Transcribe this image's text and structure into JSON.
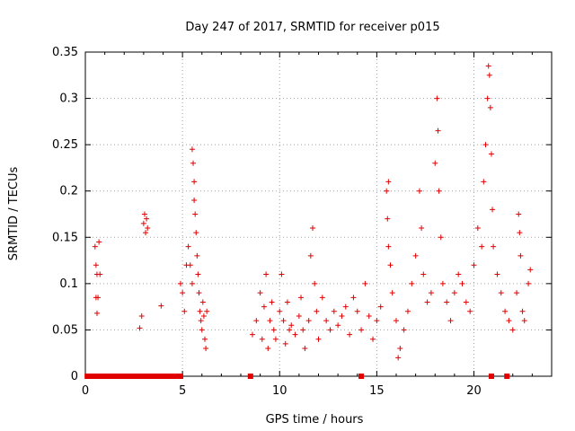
{
  "chart_data": {
    "type": "scatter",
    "title": "Day 247 of 2017, SRMTID for receiver p015",
    "xlabel": "GPS time / hours",
    "ylabel": "SRMTID / TECUs",
    "xlim": [
      0,
      24
    ],
    "ylim": [
      0,
      0.35
    ],
    "xticks": [
      0,
      5,
      10,
      15,
      20
    ],
    "xtick_labels": [
      "0",
      "5",
      "10",
      "15",
      "20"
    ],
    "yticks": [
      0,
      0.05,
      0.1,
      0.15,
      0.2,
      0.25,
      0.3,
      0.35
    ],
    "ytick_labels": [
      "0",
      "0.05",
      "0.1",
      "0.15",
      "0.2",
      "0.25",
      "0.3",
      "0.35"
    ],
    "grid": true,
    "marker": "+",
    "color": "#e00000",
    "series": [
      {
        "name": "SRMTID",
        "points": [
          [
            0.5,
            0.14
          ],
          [
            0.55,
            0.12
          ],
          [
            0.6,
            0.11
          ],
          [
            0.65,
            0.085
          ],
          [
            0.7,
            0.145
          ],
          [
            0.6,
            0.068
          ],
          [
            0.75,
            0.11
          ],
          [
            0.55,
            0.085
          ],
          [
            2.8,
            0.052
          ],
          [
            2.9,
            0.065
          ],
          [
            3.0,
            0.165
          ],
          [
            3.05,
            0.175
          ],
          [
            3.1,
            0.155
          ],
          [
            3.15,
            0.17
          ],
          [
            3.2,
            0.16
          ],
          [
            3.9,
            0.076
          ],
          [
            4.9,
            0.1
          ],
          [
            5.0,
            0.09
          ],
          [
            5.1,
            0.07
          ],
          [
            5.2,
            0.12
          ],
          [
            5.3,
            0.14
          ],
          [
            5.4,
            0.12
          ],
          [
            5.5,
            0.1
          ],
          [
            5.5,
            0.245
          ],
          [
            5.55,
            0.23
          ],
          [
            5.6,
            0.21
          ],
          [
            5.6,
            0.19
          ],
          [
            5.65,
            0.175
          ],
          [
            5.7,
            0.155
          ],
          [
            5.75,
            0.13
          ],
          [
            5.8,
            0.11
          ],
          [
            5.85,
            0.09
          ],
          [
            5.9,
            0.07
          ],
          [
            5.95,
            0.06
          ],
          [
            6.0,
            0.05
          ],
          [
            6.05,
            0.08
          ],
          [
            6.1,
            0.065
          ],
          [
            6.15,
            0.04
          ],
          [
            6.2,
            0.03
          ],
          [
            6.25,
            0.07
          ],
          [
            8.6,
            0.045
          ],
          [
            8.8,
            0.06
          ],
          [
            9.0,
            0.09
          ],
          [
            9.1,
            0.04
          ],
          [
            9.2,
            0.075
          ],
          [
            9.3,
            0.11
          ],
          [
            9.4,
            0.03
          ],
          [
            9.5,
            0.06
          ],
          [
            9.6,
            0.08
          ],
          [
            9.7,
            0.05
          ],
          [
            9.8,
            0.04
          ],
          [
            10.0,
            0.07
          ],
          [
            10.1,
            0.11
          ],
          [
            10.2,
            0.06
          ],
          [
            10.3,
            0.035
          ],
          [
            10.4,
            0.08
          ],
          [
            10.5,
            0.05
          ],
          [
            10.6,
            0.055
          ],
          [
            10.8,
            0.045
          ],
          [
            11.0,
            0.065
          ],
          [
            11.1,
            0.085
          ],
          [
            11.2,
            0.05
          ],
          [
            11.3,
            0.03
          ],
          [
            11.5,
            0.06
          ],
          [
            11.6,
            0.13
          ],
          [
            11.7,
            0.16
          ],
          [
            11.8,
            0.1
          ],
          [
            11.9,
            0.07
          ],
          [
            12.0,
            0.04
          ],
          [
            12.2,
            0.085
          ],
          [
            12.4,
            0.06
          ],
          [
            12.6,
            0.05
          ],
          [
            12.8,
            0.07
          ],
          [
            13.0,
            0.055
          ],
          [
            13.2,
            0.065
          ],
          [
            13.4,
            0.075
          ],
          [
            13.6,
            0.045
          ],
          [
            13.8,
            0.085
          ],
          [
            14.0,
            0.07
          ],
          [
            14.2,
            0.05
          ],
          [
            14.4,
            0.1
          ],
          [
            14.6,
            0.065
          ],
          [
            14.8,
            0.04
          ],
          [
            15.0,
            0.06
          ],
          [
            15.2,
            0.075
          ],
          [
            15.5,
            0.2
          ],
          [
            15.6,
            0.21
          ],
          [
            15.55,
            0.17
          ],
          [
            15.6,
            0.14
          ],
          [
            15.7,
            0.12
          ],
          [
            15.8,
            0.09
          ],
          [
            16.0,
            0.06
          ],
          [
            16.1,
            0.02
          ],
          [
            16.2,
            0.03
          ],
          [
            16.4,
            0.05
          ],
          [
            16.6,
            0.07
          ],
          [
            16.8,
            0.1
          ],
          [
            17.0,
            0.13
          ],
          [
            17.2,
            0.2
          ],
          [
            17.3,
            0.16
          ],
          [
            17.4,
            0.11
          ],
          [
            17.6,
            0.08
          ],
          [
            17.8,
            0.09
          ],
          [
            18.0,
            0.23
          ],
          [
            18.1,
            0.3
          ],
          [
            18.15,
            0.265
          ],
          [
            18.2,
            0.2
          ],
          [
            18.3,
            0.15
          ],
          [
            18.4,
            0.1
          ],
          [
            18.6,
            0.08
          ],
          [
            18.8,
            0.06
          ],
          [
            19.0,
            0.09
          ],
          [
            19.2,
            0.11
          ],
          [
            19.4,
            0.1
          ],
          [
            19.6,
            0.08
          ],
          [
            19.8,
            0.07
          ],
          [
            20.0,
            0.12
          ],
          [
            20.2,
            0.16
          ],
          [
            20.4,
            0.14
          ],
          [
            20.5,
            0.21
          ],
          [
            20.6,
            0.25
          ],
          [
            20.7,
            0.3
          ],
          [
            20.75,
            0.335
          ],
          [
            20.8,
            0.325
          ],
          [
            20.85,
            0.29
          ],
          [
            20.9,
            0.24
          ],
          [
            20.95,
            0.18
          ],
          [
            21.0,
            0.14
          ],
          [
            21.2,
            0.11
          ],
          [
            21.4,
            0.09
          ],
          [
            21.6,
            0.07
          ],
          [
            21.8,
            0.06
          ],
          [
            22.0,
            0.05
          ],
          [
            22.2,
            0.09
          ],
          [
            22.3,
            0.175
          ],
          [
            22.35,
            0.155
          ],
          [
            22.4,
            0.13
          ],
          [
            22.5,
            0.07
          ],
          [
            22.6,
            0.06
          ],
          [
            22.8,
            0.1
          ],
          [
            22.9,
            0.115
          ]
        ]
      }
    ],
    "zero_points_x": [
      0.1,
      0.3,
      0.5,
      0.7,
      0.9,
      1.1,
      1.3,
      1.5,
      1.7,
      1.9,
      2.1,
      2.3,
      2.5,
      2.7,
      2.9,
      3.1,
      3.3,
      3.5,
      3.7,
      3.9,
      4.1,
      4.3,
      4.5,
      4.7,
      4.9,
      8.5,
      14.2,
      20.9,
      21.7
    ]
  }
}
